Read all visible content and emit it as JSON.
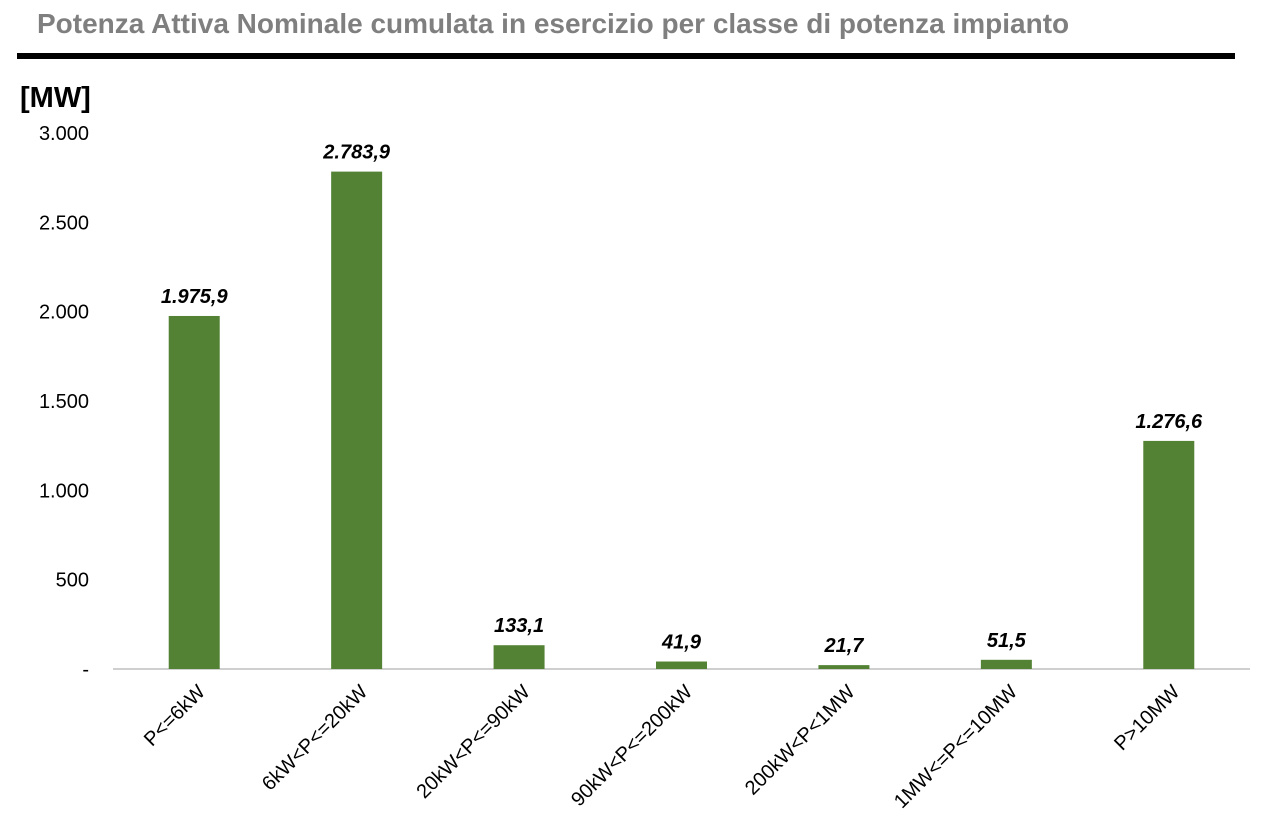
{
  "title": "Potenza Attiva Nominale cumulata in esercizio per classe di potenza impianto",
  "chart_data": {
    "type": "bar",
    "title": "Potenza Attiva Nominale cumulata in esercizio per classe di potenza impianto",
    "unit_label": "[MW]",
    "xlabel": "",
    "ylabel": "",
    "categories": [
      "P<=6kW",
      "6kW<P<=20kW",
      "20kW<P<=90kW",
      "90kW<P<=200kW",
      "200kW<P<1MW",
      "1MW<=P<=10MW",
      "P>10MW"
    ],
    "values": [
      1975.9,
      2783.9,
      133.1,
      41.9,
      21.7,
      51.5,
      1276.6
    ],
    "data_labels": [
      "1.975,9",
      "2.783,9",
      "133,1",
      "41,9",
      "21,7",
      "51,5",
      "1.276,6"
    ],
    "ylim": [
      0,
      3000
    ],
    "yticks": [
      0,
      500,
      1000,
      1500,
      2000,
      2500,
      3000
    ],
    "ytick_labels": [
      "-",
      "500",
      "1.000",
      "1.500",
      "2.000",
      "2.500",
      "3.000"
    ],
    "bar_color": "#548235",
    "grid": false,
    "legend": "none"
  }
}
